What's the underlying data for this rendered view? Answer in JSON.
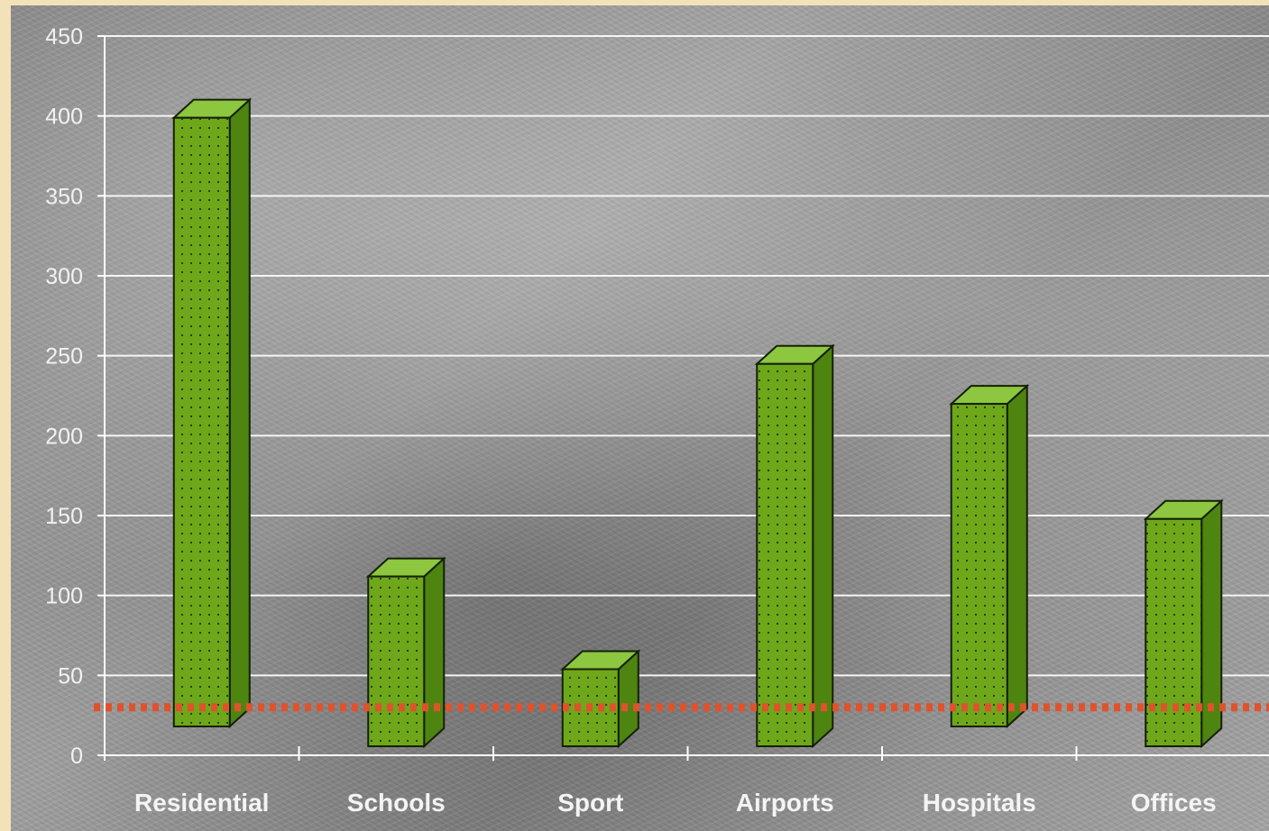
{
  "chart_data": {
    "type": "bar",
    "categories": [
      "Residential",
      "Schools",
      "Sport",
      "Airports",
      "Hospitals",
      "Offices"
    ],
    "values": [
      400,
      113,
      55,
      246,
      221,
      149
    ],
    "ylim": [
      0,
      450
    ],
    "yticks": [
      0,
      50,
      100,
      150,
      200,
      250,
      300,
      350,
      400,
      450
    ],
    "grid": true,
    "reference_line": {
      "value": 30,
      "color": "#e0522c",
      "style": "dotted"
    },
    "colors": {
      "bar_front": "#6ea71a",
      "bar_side": "#4e8410",
      "bar_top": "#8dc63f",
      "grid": "#f5f5f5",
      "axis": "#ffffff"
    }
  }
}
